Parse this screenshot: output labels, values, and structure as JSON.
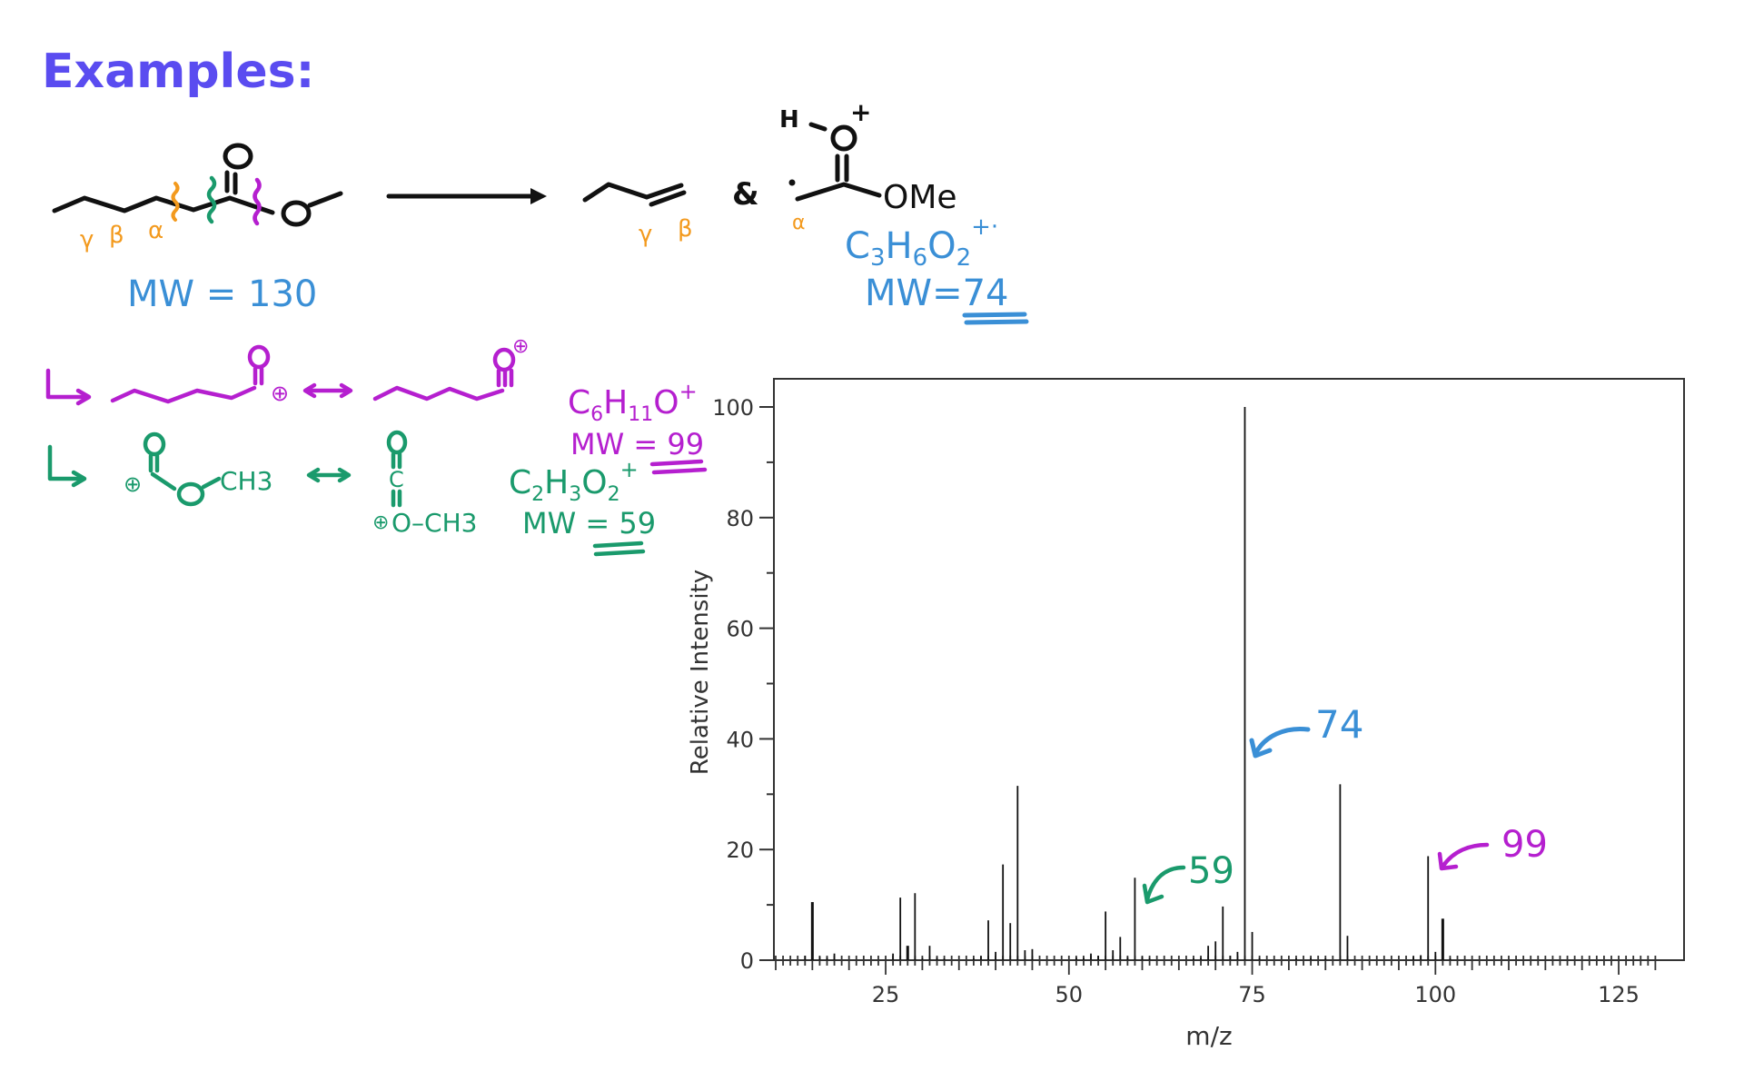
{
  "heading": {
    "text": "Examples:",
    "color": "#5a4cf0"
  },
  "colors": {
    "ink": "#111111",
    "magenta": "#b51fcf",
    "green": "#1a9a6c",
    "orange": "#f39a1e",
    "blue": "#3a8fd6",
    "axis": "#333333"
  },
  "reaction": {
    "reactant": {
      "labels": {
        "gamma": "γ",
        "beta": "β",
        "alpha": "α"
      },
      "mw": "MW = 130"
    },
    "product_alkene": {
      "labels": {
        "gamma": "γ",
        "beta": "β"
      }
    },
    "ampersand": "&",
    "product_ion": {
      "h": "H",
      "plus": "+",
      "ome": "OMe",
      "alpha": "α",
      "formula": {
        "main": "C",
        "s1": "3",
        "h": "H",
        "s2": "6",
        "o": "O",
        "s3": "2",
        "charge": "+·"
      },
      "mw_prefix": "MW=",
      "mw_value": "74"
    }
  },
  "fragments": [
    {
      "color": "#b51fcf",
      "left_charge": "⊕",
      "right_charge": "⊕",
      "formula": {
        "c": "C",
        "s1": "6",
        "h": "H",
        "s2": "11",
        "o": "O",
        "charge": "+"
      },
      "mw_prefix": "MW =",
      "mw_value": "99"
    },
    {
      "color": "#1a9a6c",
      "left_group": "CH3",
      "right_group": "O–CH3",
      "right_c": "C",
      "charge": "⊕",
      "formula": {
        "c": "C",
        "s1": "2",
        "h": "H",
        "s2": "3",
        "o": "O",
        "s3": "2",
        "charge": "+"
      },
      "mw_prefix": "MW =",
      "mw_value": "59"
    }
  ],
  "annotations": [
    {
      "label": "74",
      "color": "#3a8fd6",
      "mz": 74
    },
    {
      "label": "59",
      "color": "#1a9a6c",
      "mz": 59
    },
    {
      "label": "99",
      "color": "#b51fcf",
      "mz": 99
    }
  ],
  "chart_data": {
    "type": "bar",
    "title": "",
    "xlabel": "m/z",
    "ylabel": "Relative Intensity",
    "xlim": [
      10,
      134
    ],
    "ylim": [
      0,
      105
    ],
    "x_ticks": [
      25,
      50,
      75,
      100,
      125
    ],
    "y_ticks": [
      0,
      20,
      40,
      60,
      80,
      100
    ],
    "grid": false,
    "legend": null,
    "peaks": [
      {
        "mz": 14,
        "intensity": 0.8
      },
      {
        "mz": 15,
        "intensity": 10.5
      },
      {
        "mz": 16,
        "intensity": 0.6
      },
      {
        "mz": 17,
        "intensity": 0.5
      },
      {
        "mz": 18,
        "intensity": 1.2
      },
      {
        "mz": 26,
        "intensity": 1.2
      },
      {
        "mz": 27,
        "intensity": 11.3
      },
      {
        "mz": 28,
        "intensity": 2.6
      },
      {
        "mz": 29,
        "intensity": 12.1
      },
      {
        "mz": 30,
        "intensity": 0.4
      },
      {
        "mz": 31,
        "intensity": 2.6
      },
      {
        "mz": 32,
        "intensity": 0.5
      },
      {
        "mz": 33,
        "intensity": 0.3
      },
      {
        "mz": 37,
        "intensity": 0.3
      },
      {
        "mz": 38,
        "intensity": 0.7
      },
      {
        "mz": 39,
        "intensity": 7.2
      },
      {
        "mz": 40,
        "intensity": 1.5
      },
      {
        "mz": 41,
        "intensity": 17.3
      },
      {
        "mz": 42,
        "intensity": 6.7
      },
      {
        "mz": 43,
        "intensity": 31.5
      },
      {
        "mz": 44,
        "intensity": 1.8
      },
      {
        "mz": 45,
        "intensity": 2.0
      },
      {
        "mz": 51,
        "intensity": 0.5
      },
      {
        "mz": 52,
        "intensity": 0.4
      },
      {
        "mz": 53,
        "intensity": 1.2
      },
      {
        "mz": 54,
        "intensity": 0.8
      },
      {
        "mz": 55,
        "intensity": 8.8
      },
      {
        "mz": 56,
        "intensity": 1.8
      },
      {
        "mz": 57,
        "intensity": 4.2
      },
      {
        "mz": 58,
        "intensity": 0.5
      },
      {
        "mz": 59,
        "intensity": 14.9
      },
      {
        "mz": 60,
        "intensity": 0.6
      },
      {
        "mz": 61,
        "intensity": 0.4
      },
      {
        "mz": 67,
        "intensity": 0.3
      },
      {
        "mz": 68,
        "intensity": 0.4
      },
      {
        "mz": 69,
        "intensity": 2.6
      },
      {
        "mz": 70,
        "intensity": 3.4
      },
      {
        "mz": 71,
        "intensity": 9.7
      },
      {
        "mz": 72,
        "intensity": 0.8
      },
      {
        "mz": 73,
        "intensity": 1.5
      },
      {
        "mz": 74,
        "intensity": 100
      },
      {
        "mz": 75,
        "intensity": 5.1
      },
      {
        "mz": 76,
        "intensity": 0.4
      },
      {
        "mz": 81,
        "intensity": 0.3
      },
      {
        "mz": 83,
        "intensity": 0.4
      },
      {
        "mz": 85,
        "intensity": 0.3
      },
      {
        "mz": 87,
        "intensity": 31.8
      },
      {
        "mz": 88,
        "intensity": 4.4
      },
      {
        "mz": 97,
        "intensity": 0.6
      },
      {
        "mz": 98,
        "intensity": 0.9
      },
      {
        "mz": 99,
        "intensity": 18.8
      },
      {
        "mz": 100,
        "intensity": 1.5
      },
      {
        "mz": 101,
        "intensity": 7.5
      },
      {
        "mz": 102,
        "intensity": 0.4
      }
    ]
  }
}
